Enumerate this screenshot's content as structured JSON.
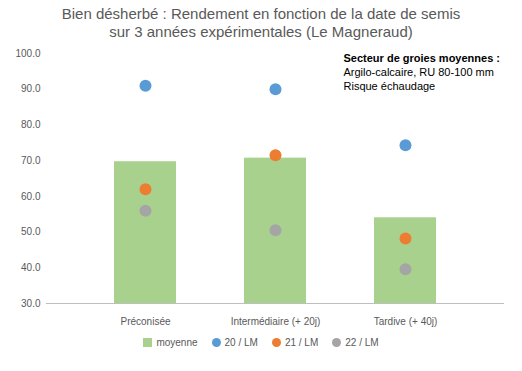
{
  "chart_data": {
    "type": "bar",
    "title": "Bien désherbé : Rendement en fonction de la date de semis\nsur 3 années expérimentales (Le Magneraud)",
    "annotations": [
      "Secteur de groies moyennes :",
      "Argilo-calcaire, RU 80-100 mm",
      "Risque échaudage"
    ],
    "categories": [
      "Préconisée",
      "Intermédiaire (+ 20j)",
      "Tardive (+ 40j)"
    ],
    "series": [
      {
        "name": "moyenne",
        "type": "bar",
        "color": "#a9d18e",
        "values": [
          69.7,
          70.7,
          54.0
        ]
      },
      {
        "name": "20 / LM",
        "type": "scatter",
        "marker": "circle",
        "color": "#5b9bd5",
        "values": [
          91.0,
          90.0,
          74.3
        ]
      },
      {
        "name": "21 / LM",
        "type": "scatter",
        "marker": "circle",
        "color": "#ed7d31",
        "values": [
          62.0,
          71.5,
          48.2
        ]
      },
      {
        "name": "22 / LM",
        "type": "scatter",
        "marker": "circle",
        "color": "#a5a5a5",
        "values": [
          56.0,
          50.5,
          39.6
        ]
      }
    ],
    "ylim": [
      30,
      100
    ],
    "yticks": [
      {
        "value": 30,
        "label": "30.0"
      },
      {
        "value": 40,
        "label": "40.0"
      },
      {
        "value": 50,
        "label": "50.0"
      },
      {
        "value": 60,
        "label": "60.0"
      },
      {
        "value": 70,
        "label": "70.0"
      },
      {
        "value": 80,
        "label": "80.0"
      },
      {
        "value": 90,
        "label": "90.0"
      },
      {
        "value": 100,
        "label": "100.0"
      }
    ],
    "grid": false,
    "legend": "bottom"
  }
}
